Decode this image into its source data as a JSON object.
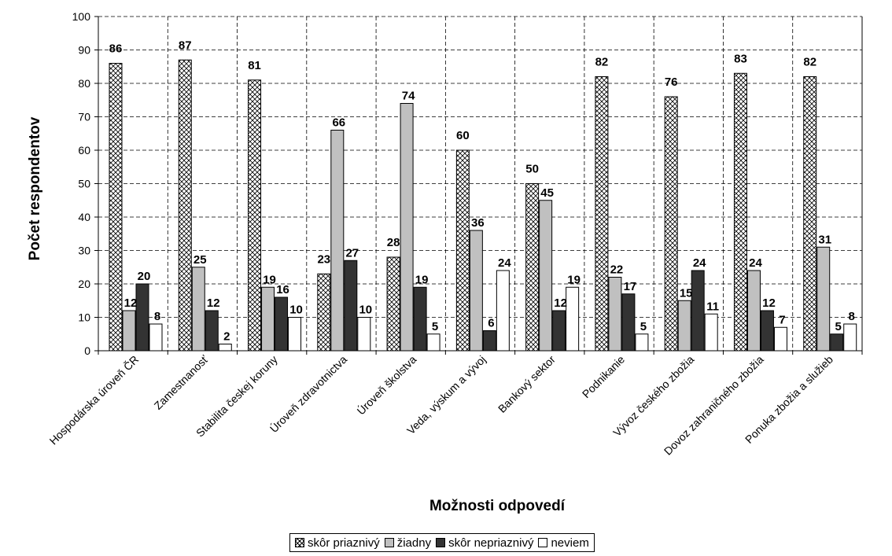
{
  "chart_data": {
    "type": "bar",
    "ylabel": "Počet respondentov",
    "xlabel": "Možnosti odpovedí",
    "ylim": [
      0,
      100
    ],
    "yticks": [
      0,
      10,
      20,
      30,
      40,
      50,
      60,
      70,
      80,
      90,
      100
    ],
    "grid": "horizontal dashed",
    "legend_position": "bottom",
    "categories": [
      "Hospodárska úroveň ČR",
      "Zamestnanosť",
      "Stabilita českej koruny",
      "Úroveň zdravotnictva",
      "Úroveň školstva",
      "Veda, výskum a vývoj",
      "Bankový sektor",
      "Podnikanie",
      "Vývoz českého zbožia",
      "Dovoz zahraničného zbožia",
      "Ponuka zbožia a služieb"
    ],
    "series": [
      {
        "name": "skôr priaznivý",
        "pattern": "crosshatch",
        "color": "#ffffff",
        "values": [
          86,
          87,
          81,
          23,
          28,
          60,
          50,
          82,
          76,
          83,
          82
        ]
      },
      {
        "name": "žiadny",
        "color": "#c0c0c0",
        "values": [
          12,
          25,
          19,
          66,
          74,
          36,
          45,
          22,
          15,
          24,
          31
        ]
      },
      {
        "name": "skôr nepriaznivý",
        "color": "#333333",
        "values": [
          20,
          12,
          16,
          27,
          19,
          6,
          12,
          17,
          24,
          12,
          5
        ]
      },
      {
        "name": "neviem",
        "color": "#ffffff",
        "values": [
          8,
          2,
          10,
          10,
          5,
          24,
          19,
          5,
          11,
          7,
          8
        ]
      }
    ]
  }
}
